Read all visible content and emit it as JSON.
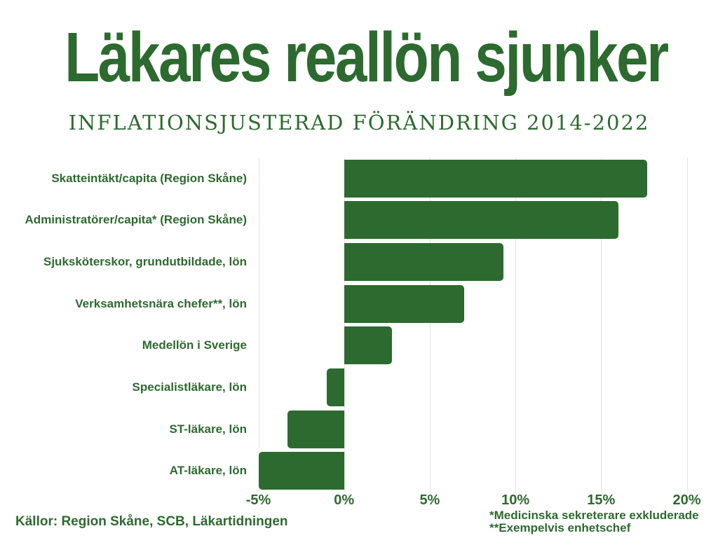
{
  "title": "Läkares reallön sjunker",
  "subtitle": "INFLATIONSJUSTERAD FÖRÄNDRING 2014-2022",
  "footer": {
    "sources": "Källor: Region Skåne, SCB, Läkartidningen",
    "footnote1": "*Medicinska sekreterare exkluderade",
    "footnote2": "**Exempelvis enhetschef"
  },
  "colors": {
    "accent_green": "#2d6a2f",
    "gridline": "#e0e7e0",
    "background": "#ffffff"
  },
  "chart_data": {
    "type": "bar",
    "orientation": "horizontal",
    "title": "Läkares reallön sjunker",
    "subtitle": "Inflationsjusterad förändring 2014-2022",
    "unit": "%",
    "categories": [
      "Skatteintäkt/capita (Region Skåne)",
      "Administratörer/capita* (Region Skåne)",
      "Sjuksköterskor, grundutbildade, lön",
      "Verksamhetsnära chefer**, lön",
      "Medellön i Sverige",
      "Specialistläkare, lön",
      "ST-läkare, lön",
      "AT-läkare, lön"
    ],
    "values": [
      17.7,
      16.0,
      9.3,
      7.0,
      2.8,
      -1.0,
      -3.3,
      -5.0
    ],
    "xlim": [
      -5,
      20
    ],
    "xticks": [
      "-5%",
      "0%",
      "5%",
      "10%",
      "15%",
      "20%"
    ],
    "xtick_values": [
      -5,
      0,
      5,
      10,
      15,
      20
    ],
    "grid": true,
    "legend": false
  }
}
